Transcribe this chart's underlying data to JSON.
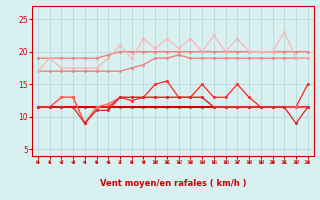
{
  "x": [
    0,
    1,
    2,
    3,
    4,
    5,
    6,
    7,
    8,
    9,
    10,
    11,
    12,
    13,
    14,
    15,
    16,
    17,
    18,
    19,
    20,
    21,
    22,
    23
  ],
  "lines": [
    {
      "y": [
        17,
        17,
        17,
        17,
        17,
        17,
        17,
        17,
        17.5,
        18,
        19,
        19,
        19.5,
        19,
        19,
        19,
        19,
        19,
        19,
        19,
        19,
        19,
        19,
        19
      ],
      "color": "#f08080",
      "lw": 1.0,
      "marker": "o",
      "ms": 1.8
    },
    {
      "y": [
        19,
        19,
        19,
        19,
        19,
        19,
        19.5,
        20,
        20,
        20,
        20,
        20,
        20,
        20,
        20,
        20,
        20,
        20,
        20,
        20,
        20,
        20,
        20,
        20
      ],
      "color": "#f08080",
      "lw": 1.0,
      "marker": "o",
      "ms": 1.8
    },
    {
      "y": [
        17,
        19,
        17.5,
        17.5,
        17.5,
        17.5,
        19,
        21,
        19,
        22,
        20.5,
        22,
        20.5,
        22,
        20,
        22.5,
        20,
        22,
        20,
        20,
        20,
        23,
        19,
        19
      ],
      "color": "#ffb0b0",
      "lw": 0.8,
      "marker": "o",
      "ms": 1.8
    },
    {
      "y": [
        11.5,
        11.5,
        11.5,
        11.5,
        11.5,
        11.5,
        11.5,
        11.5,
        11.5,
        11.5,
        11.5,
        11.5,
        11.5,
        11.5,
        11.5,
        11.5,
        11.5,
        11.5,
        11.5,
        11.5,
        11.5,
        11.5,
        11.5,
        11.5
      ],
      "color": "#cc0000",
      "lw": 1.5,
      "marker": "o",
      "ms": 1.6
    },
    {
      "y": [
        11.5,
        11.5,
        13,
        13,
        9,
        11.5,
        11.5,
        13,
        12.5,
        13,
        15,
        15.5,
        13,
        13,
        15,
        13,
        13,
        15,
        13,
        11.5,
        11.5,
        11.5,
        11.5,
        15
      ],
      "color": "#ff2222",
      "lw": 0.9,
      "marker": "o",
      "ms": 1.8
    },
    {
      "y": [
        11.5,
        11.5,
        13,
        13,
        9,
        11.5,
        12,
        13,
        13,
        13,
        13,
        13,
        13,
        13,
        13,
        11.5,
        11.5,
        11.5,
        11.5,
        11.5,
        11.5,
        11.5,
        11.5,
        11.5
      ],
      "color": "#ff6666",
      "lw": 0.9,
      "marker": "o",
      "ms": 1.8
    },
    {
      "y": [
        11.5,
        11.5,
        11.5,
        11.5,
        9,
        11,
        11,
        13,
        13,
        13,
        13,
        13,
        13,
        13,
        13,
        11.5,
        11.5,
        11.5,
        11.5,
        11.5,
        11.5,
        11.5,
        9,
        11.5
      ],
      "color": "#dd2222",
      "lw": 0.9,
      "marker": "o",
      "ms": 1.8
    }
  ],
  "xlabel": "Vent moyen/en rafales ( km/h )",
  "xlim": [
    -0.5,
    23.5
  ],
  "ylim": [
    4,
    27
  ],
  "yticks": [
    5,
    10,
    15,
    20,
    25
  ],
  "xticks": [
    0,
    1,
    2,
    3,
    4,
    5,
    6,
    7,
    8,
    9,
    10,
    11,
    12,
    13,
    14,
    15,
    16,
    17,
    18,
    19,
    20,
    21,
    22,
    23
  ],
  "bg_color": "#d8f0f0",
  "grid_color": "#b8dada",
  "tick_color": "#cc0000",
  "label_color": "#cc0000",
  "arrow_color": "#cc0000",
  "spine_color": "#cc0000"
}
